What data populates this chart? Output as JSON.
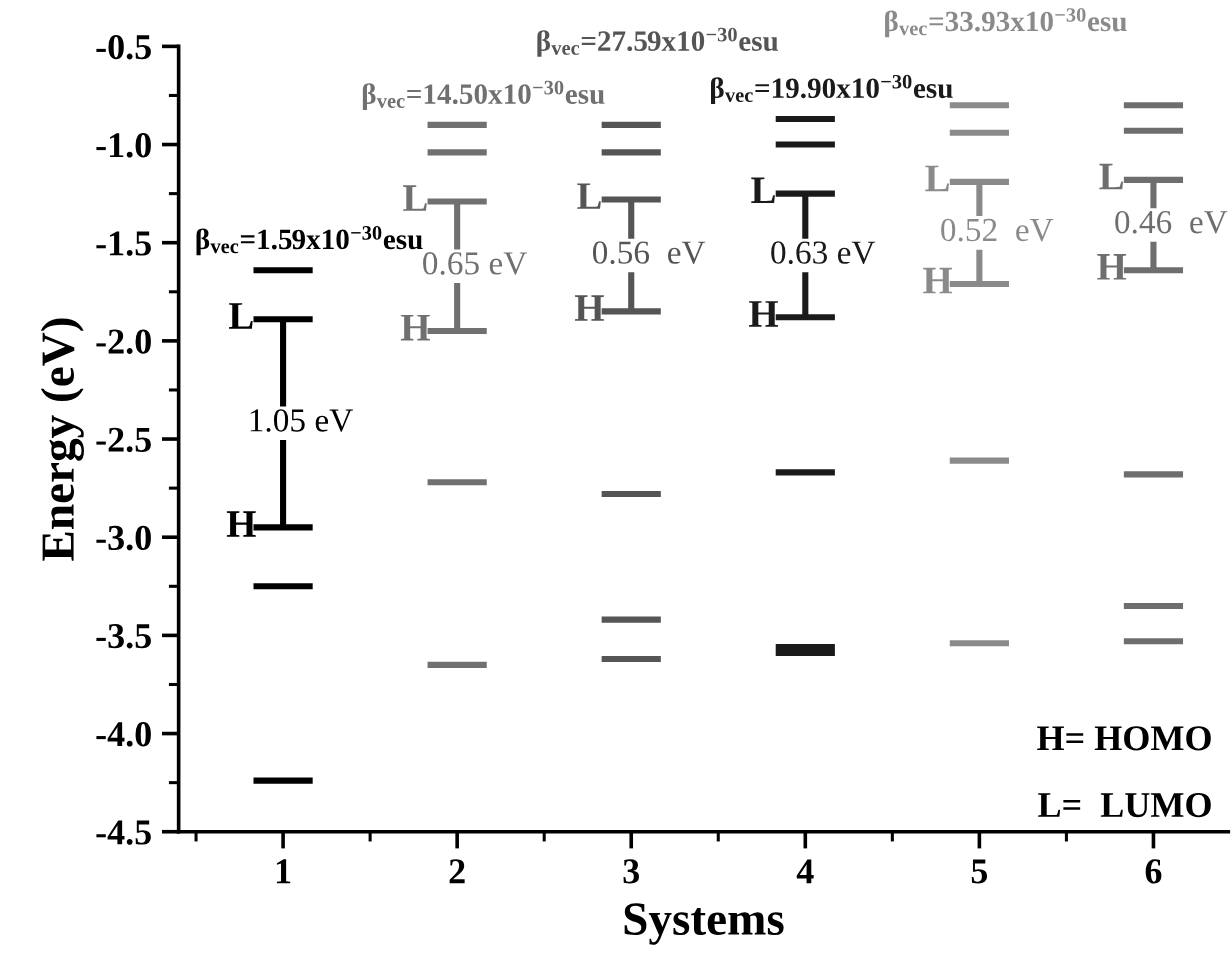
{
  "chart_data": {
    "type": "line",
    "xlabel": "Systems",
    "ylabel": "Energy (eV)",
    "xlim": [
      0.4,
      6.43
    ],
    "ylim": [
      -4.5,
      -0.5
    ],
    "xticks": [
      {
        "value": 0.5,
        "label": null
      },
      1,
      {
        "value": 1.5,
        "label": null
      },
      2,
      {
        "value": 2.5,
        "label": null
      },
      3,
      {
        "value": 3.5,
        "label": null
      },
      4,
      {
        "value": 4.5,
        "label": null
      },
      5,
      {
        "value": 5.5,
        "label": null
      },
      6
    ],
    "yticks": [
      -4.5,
      {
        "value": -4.25,
        "label": null
      },
      {
        "value": -4,
        "label": "-4.0"
      },
      {
        "value": -3.75,
        "label": null
      },
      -3.5,
      {
        "value": -3.25,
        "label": null
      },
      {
        "value": -3,
        "label": "-3.0"
      },
      {
        "value": -2.75,
        "label": null
      },
      -2.5,
      {
        "value": -2.25,
        "label": null
      },
      {
        "value": -2,
        "label": "-2.0"
      },
      {
        "value": -1.75,
        "label": null
      },
      -1.5,
      {
        "value": -1.25,
        "label": null
      },
      {
        "value": -1,
        "label": "-1.0"
      },
      {
        "value": -0.75,
        "label": null
      },
      -0.5
    ],
    "grid": false,
    "legend": false,
    "marker": "none",
    "line_style": "solid",
    "series": [
      {
        "color": "#000000",
        "x": [
          0.83,
          1.17
        ],
        "values": [
          -1.64,
          -1.64
        ]
      },
      {
        "color": "#000000",
        "x": [
          0.83,
          1.17
        ],
        "values": [
          -1.89,
          -1.89
        ]
      },
      {
        "color": "#000000",
        "x": [
          0.83,
          1.17
        ],
        "values": [
          -2.95,
          -2.95
        ]
      },
      {
        "color": "#000000",
        "x": [
          0.83,
          1.17
        ],
        "values": [
          -3.25,
          -3.25
        ]
      },
      {
        "color": "#000000",
        "x": [
          0.83,
          1.17
        ],
        "values": [
          -4.24,
          -4.24
        ]
      },
      {
        "color": "#000000",
        "x": [
          1,
          1
        ],
        "values": [
          -2.95,
          -1.89
        ]
      },
      {
        "color": "#707070",
        "x": [
          1.83,
          2.17
        ],
        "values": [
          -0.9,
          -0.9
        ]
      },
      {
        "color": "#707070",
        "x": [
          1.83,
          2.17
        ],
        "values": [
          -1.04,
          -1.04
        ]
      },
      {
        "color": "#707070",
        "x": [
          1.83,
          2.17
        ],
        "values": [
          -1.29,
          -1.29
        ]
      },
      {
        "color": "#707070",
        "x": [
          1.83,
          2.17
        ],
        "values": [
          -1.95,
          -1.95
        ]
      },
      {
        "color": "#707070",
        "x": [
          1.83,
          2.17
        ],
        "values": [
          -2.72,
          -2.72
        ]
      },
      {
        "color": "#707070",
        "x": [
          1.83,
          2.17
        ],
        "values": [
          -3.65,
          -3.65
        ]
      },
      {
        "color": "#707070",
        "x": [
          2,
          2
        ],
        "values": [
          -1.95,
          -1.29
        ]
      },
      {
        "color": "#555555",
        "x": [
          2.83,
          3.17
        ],
        "values": [
          -0.9,
          -0.9
        ]
      },
      {
        "color": "#555555",
        "x": [
          2.83,
          3.17
        ],
        "values": [
          -1.04,
          -1.04
        ]
      },
      {
        "color": "#555555",
        "x": [
          2.83,
          3.17
        ],
        "values": [
          -1.28,
          -1.28
        ]
      },
      {
        "color": "#555555",
        "x": [
          2.83,
          3.17
        ],
        "values": [
          -1.85,
          -1.85
        ]
      },
      {
        "color": "#555555",
        "x": [
          2.83,
          3.17
        ],
        "values": [
          -2.78,
          -2.78
        ]
      },
      {
        "color": "#555555",
        "x": [
          2.83,
          3.17
        ],
        "values": [
          -3.42,
          -3.42
        ]
      },
      {
        "color": "#555555",
        "x": [
          2.83,
          3.17
        ],
        "values": [
          -3.62,
          -3.62
        ]
      },
      {
        "color": "#555555",
        "x": [
          3,
          3
        ],
        "values": [
          -1.85,
          -1.28
        ]
      },
      {
        "color": "#1a1a1a",
        "x": [
          3.83,
          4.17
        ],
        "values": [
          -0.87,
          -0.87
        ]
      },
      {
        "color": "#1a1a1a",
        "x": [
          3.83,
          4.17
        ],
        "values": [
          -1.0,
          -1.0
        ]
      },
      {
        "color": "#1a1a1a",
        "x": [
          3.83,
          4.17
        ],
        "values": [
          -1.25,
          -1.25
        ]
      },
      {
        "color": "#1a1a1a",
        "x": [
          3.83,
          4.17
        ],
        "values": [
          -1.88,
          -1.88
        ]
      },
      {
        "color": "#1a1a1a",
        "x": [
          3.83,
          4.17
        ],
        "values": [
          -2.67,
          -2.67
        ]
      },
      {
        "color": "#1a1a1a",
        "x": [
          3.83,
          4.17
        ],
        "values": [
          -3.56,
          -3.56
        ]
      },
      {
        "color": "#1a1a1a",
        "x": [
          3.83,
          4.17
        ],
        "values": [
          -3.59,
          -3.59
        ]
      },
      {
        "color": "#1a1a1a",
        "x": [
          4,
          4
        ],
        "values": [
          -1.88,
          -1.25
        ]
      },
      {
        "color": "#8a8a8a",
        "x": [
          4.83,
          5.17
        ],
        "values": [
          -0.8,
          -0.8
        ]
      },
      {
        "color": "#8a8a8a",
        "x": [
          4.83,
          5.17
        ],
        "values": [
          -0.94,
          -0.94
        ]
      },
      {
        "color": "#8a8a8a",
        "x": [
          4.83,
          5.17
        ],
        "values": [
          -1.19,
          -1.19
        ]
      },
      {
        "color": "#8a8a8a",
        "x": [
          4.83,
          5.17
        ],
        "values": [
          -1.71,
          -1.71
        ]
      },
      {
        "color": "#8a8a8a",
        "x": [
          4.83,
          5.17
        ],
        "values": [
          -2.61,
          -2.61
        ]
      },
      {
        "color": "#8a8a8a",
        "x": [
          4.83,
          5.17
        ],
        "values": [
          -3.54,
          -3.54
        ]
      },
      {
        "color": "#8a8a8a",
        "x": [
          5,
          5
        ],
        "values": [
          -1.71,
          -1.19
        ]
      },
      {
        "color": "#6e6e6e",
        "x": [
          5.83,
          6.17
        ],
        "values": [
          -0.8,
          -0.8
        ]
      },
      {
        "color": "#6e6e6e",
        "x": [
          5.83,
          6.17
        ],
        "values": [
          -0.93,
          -0.93
        ]
      },
      {
        "color": "#6e6e6e",
        "x": [
          5.83,
          6.17
        ],
        "values": [
          -1.18,
          -1.18
        ]
      },
      {
        "color": "#6e6e6e",
        "x": [
          5.83,
          6.17
        ],
        "values": [
          -1.64,
          -1.64
        ]
      },
      {
        "color": "#6e6e6e",
        "x": [
          5.83,
          6.17
        ],
        "values": [
          -2.68,
          -2.68
        ]
      },
      {
        "color": "#6e6e6e",
        "x": [
          5.83,
          6.17
        ],
        "values": [
          -3.35,
          -3.35
        ]
      },
      {
        "color": "#6e6e6e",
        "x": [
          5.83,
          6.17
        ],
        "values": [
          -3.53,
          -3.53
        ]
      },
      {
        "color": "#6e6e6e",
        "x": [
          6,
          6
        ],
        "values": [
          -1.64,
          -1.18
        ]
      }
    ],
    "annotations": [
      "L",
      "H",
      "1.05 eV",
      "L",
      "H",
      "0.65 eV",
      "L",
      "H",
      "0.56  eV",
      "L",
      "H",
      "0.63 eV",
      "L",
      "H",
      "0.52  eV",
      "L",
      "H",
      "0.46  eV",
      "β$_{vec}$=1.59x10$^{−30}$esu",
      "β$_{vec}$=14.50x10$^{−30}$esu",
      "β$_{vec}$=27.59x10$^{−30}$esu",
      "β$_{vec}$=19.90x10$^{−30}$esu",
      "β$_{vec}$=33.93x10$^{−30}$esu",
      "H= HOMO",
      "L=  LUMO"
    ]
  }
}
